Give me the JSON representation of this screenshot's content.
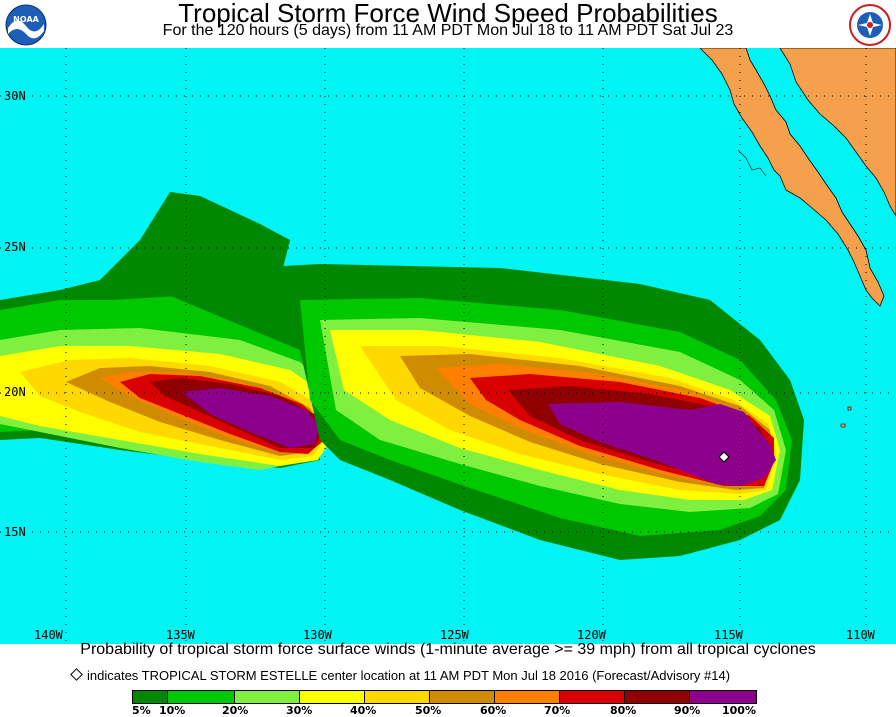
{
  "title": "Tropical Storm Force Wind Speed Probabilities",
  "subtitle": "For the 120 hours (5 days) from 11 AM PDT Mon Jul 18 to 11 AM PDT Sat Jul 23",
  "logos": {
    "left_icon": "noaa-logo",
    "right_icon": "national-weather-service-logo"
  },
  "map": {
    "ocean_color": "#00f4f4",
    "land_color": "#f5a04c",
    "lat_labels": [
      "30N",
      "25N",
      "20N",
      "15N"
    ],
    "lon_labels": [
      "140W",
      "135W",
      "130W",
      "125W",
      "120W",
      "115W",
      "110W"
    ],
    "storm_marker_icon": "storm-center-diamond-icon"
  },
  "caption": "Probability of tropical storm force surface winds (1-minute average >= 39 mph) from all tropical cyclones",
  "marker_note": "indicates TROPICAL STORM ESTELLE center location at 11 AM PDT Mon Jul 18 2016 (Forecast/Advisory #14)",
  "legend": {
    "colors": [
      "#008800",
      "#00c800",
      "#80f040",
      "#ffff00",
      "#ffd800",
      "#d08c00",
      "#ff8000",
      "#d80000",
      "#900000",
      "#8c008c"
    ],
    "labels": [
      "5%",
      "10%",
      "20%",
      "30%",
      "40%",
      "50%",
      "60%",
      "70%",
      "80%",
      "90%",
      "100%"
    ]
  }
}
